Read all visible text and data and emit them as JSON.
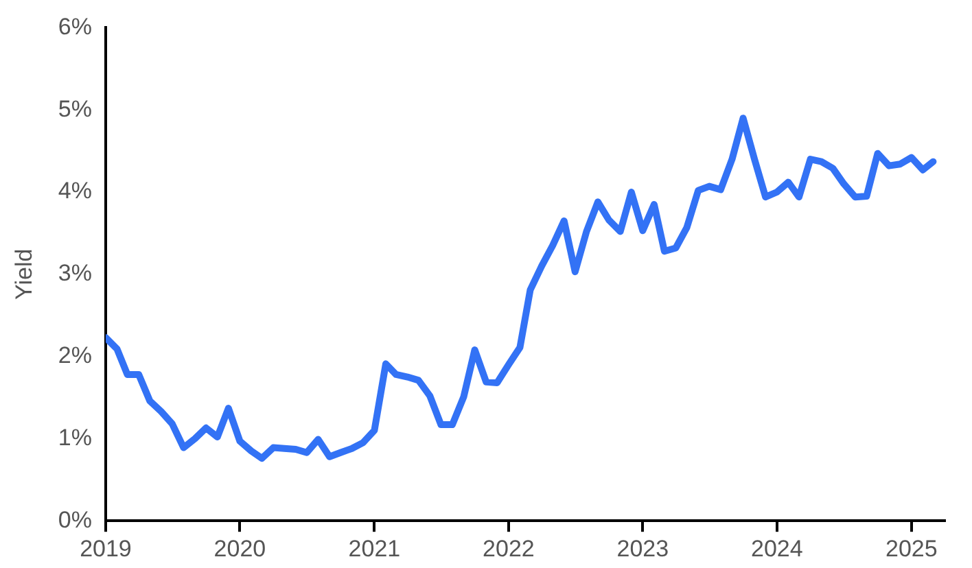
{
  "chart_data": {
    "type": "line",
    "ylabel": "Yield",
    "x": [
      "2019-01",
      "2019-02",
      "2019-03",
      "2019-04",
      "2019-05",
      "2019-06",
      "2019-07",
      "2019-08",
      "2019-09",
      "2019-10",
      "2019-11",
      "2019-12",
      "2020-01",
      "2020-02",
      "2020-03",
      "2020-04",
      "2020-05",
      "2020-06",
      "2020-07",
      "2020-08",
      "2020-09",
      "2020-10",
      "2020-11",
      "2020-12",
      "2021-01",
      "2021-02",
      "2021-03",
      "2021-04",
      "2021-05",
      "2021-06",
      "2021-07",
      "2021-08",
      "2021-09",
      "2021-10",
      "2021-11",
      "2021-12",
      "2022-01",
      "2022-02",
      "2022-03",
      "2022-04",
      "2022-05",
      "2022-06",
      "2022-07",
      "2022-08",
      "2022-09",
      "2022-10",
      "2022-11",
      "2022-12",
      "2023-01",
      "2023-02",
      "2023-03",
      "2023-04",
      "2023-05",
      "2023-06",
      "2023-07",
      "2023-08",
      "2023-09",
      "2023-10",
      "2023-11",
      "2023-12",
      "2024-01",
      "2024-02",
      "2024-03",
      "2024-04",
      "2024-05",
      "2024-06",
      "2024-07",
      "2024-08",
      "2024-09",
      "2024-10",
      "2024-11",
      "2024-12",
      "2025-01",
      "2025-02",
      "2025-03"
    ],
    "series": [
      {
        "color": "#3372f5",
        "values": [
          2.23,
          2.09,
          1.78,
          1.78,
          1.46,
          1.33,
          1.18,
          0.89,
          1.0,
          1.13,
          1.02,
          1.37,
          0.97,
          0.85,
          0.76,
          0.89,
          0.88,
          0.87,
          0.83,
          0.99,
          0.78,
          0.83,
          0.88,
          0.95,
          1.1,
          1.91,
          1.78,
          1.75,
          1.71,
          1.52,
          1.17,
          1.17,
          1.51,
          2.08,
          1.69,
          1.68,
          1.9,
          2.11,
          2.81,
          3.1,
          3.35,
          3.65,
          3.03,
          3.52,
          3.88,
          3.66,
          3.52,
          4.0,
          3.53,
          3.85,
          3.28,
          3.32,
          3.57,
          4.02,
          4.07,
          4.03,
          4.4,
          4.9,
          4.4,
          3.94,
          4.0,
          4.12,
          3.94,
          4.4,
          4.37,
          4.29,
          4.1,
          3.94,
          3.95,
          4.47,
          4.32,
          4.34,
          4.42,
          4.27,
          4.37
        ]
      }
    ],
    "xlim": [
      "2019-01",
      "2025-04"
    ],
    "xticks": [
      "2019",
      "2020",
      "2021",
      "2022",
      "2023",
      "2024",
      "2025"
    ],
    "ylim": [
      0,
      6
    ],
    "yticks": [
      {
        "value": 0,
        "label": "0%"
      },
      {
        "value": 1,
        "label": "1%"
      },
      {
        "value": 2,
        "label": "2%"
      },
      {
        "value": 3,
        "label": "3%"
      },
      {
        "value": 4,
        "label": "4%"
      },
      {
        "value": 5,
        "label": "5%"
      },
      {
        "value": 6,
        "label": "6%"
      }
    ],
    "grid": false,
    "legend": false,
    "marker": "none",
    "line_style": "solid"
  }
}
